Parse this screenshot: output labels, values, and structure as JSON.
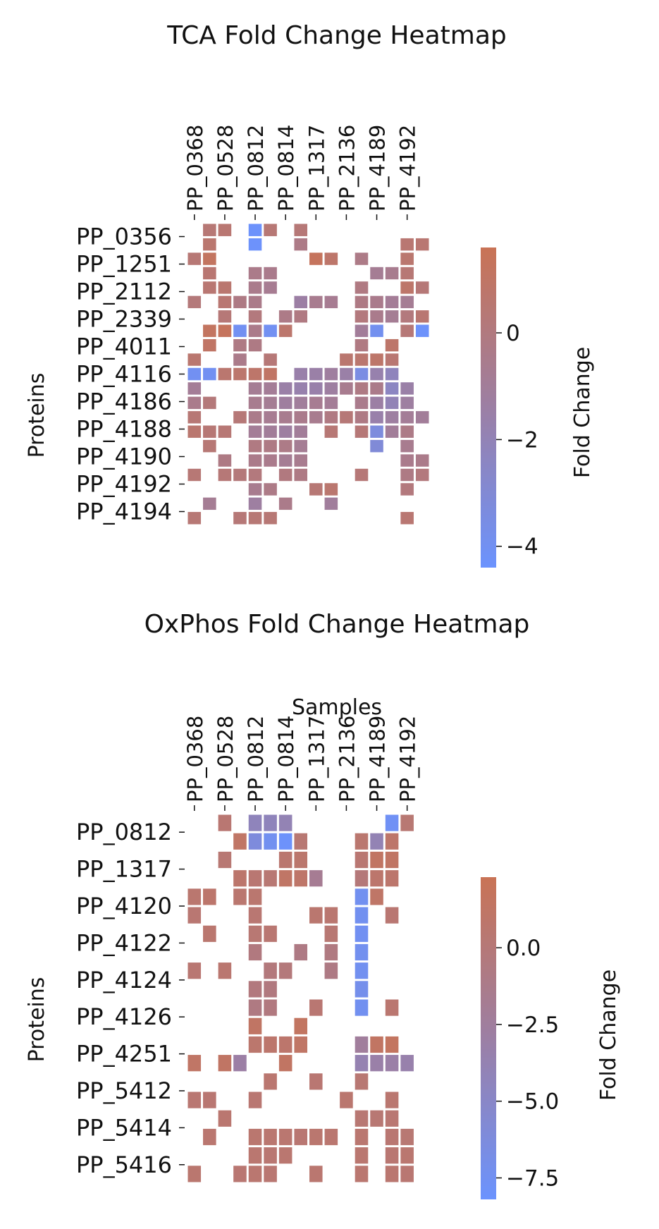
{
  "colors": {
    "low": "#6b93fe",
    "mid": "#9c7fa4",
    "high": "#c97355"
  },
  "chart_data": [
    {
      "type": "heatmap",
      "title": "TCA Fold Change Heatmap",
      "xlabel": "",
      "ylabel": "Proteins",
      "colorbar_label": "Fold Change",
      "colorbar_range": [
        -4.4,
        1.6
      ],
      "colorbar_ticks": [
        {
          "value": 0,
          "label": "0"
        },
        {
          "value": -2,
          "label": "−2"
        },
        {
          "value": -4,
          "label": "−4"
        }
      ],
      "x_tick_labels": [
        "PP_0368",
        "PP_0528",
        "PP_0812",
        "PP_0814",
        "PP_1317",
        "PP_2136",
        "PP_4189",
        "PP_4192"
      ],
      "y_tick_labels": [
        "PP_0356",
        "PP_1251",
        "PP_2112",
        "PP_2339",
        "PP_4011",
        "PP_4116",
        "PP_4186",
        "PP_4188",
        "PP_4190",
        "PP_4192",
        "PP_4194"
      ],
      "rows": [
        [
          null,
          0.4,
          0.5,
          null,
          -4.3,
          0.4,
          null,
          0.3,
          null,
          null,
          null,
          null,
          null,
          null,
          null,
          null
        ],
        [
          null,
          0.6,
          null,
          null,
          -4.3,
          null,
          null,
          -0.3,
          null,
          null,
          null,
          null,
          null,
          null,
          0.5,
          0.5
        ],
        [
          0.4,
          1.2,
          null,
          null,
          null,
          null,
          null,
          null,
          1.3,
          0.8,
          null,
          -0.3,
          null,
          null,
          0.6,
          null
        ],
        [
          null,
          0.5,
          null,
          null,
          -0.4,
          -0.5,
          null,
          null,
          null,
          null,
          null,
          null,
          -0.8,
          -0.6,
          0.4,
          null
        ],
        [
          null,
          0.5,
          0.6,
          null,
          -0.5,
          -0.7,
          null,
          null,
          null,
          null,
          null,
          -0.1,
          null,
          null,
          0.8,
          0.3
        ],
        [
          0.2,
          null,
          0.5,
          -0.2,
          -0.4,
          null,
          null,
          -1.4,
          -0.6,
          -0.7,
          null,
          -0.2,
          -0.5,
          -0.9,
          -0.8,
          null
        ],
        [
          null,
          null,
          0.3,
          null,
          0.1,
          null,
          -0.3,
          -0.1,
          null,
          null,
          null,
          0.1,
          -0.5,
          -0.8,
          0.1,
          0.5
        ],
        [
          null,
          1.2,
          1.3,
          -4.0,
          -0.4,
          -4.0,
          0.7,
          null,
          null,
          null,
          null,
          -1.0,
          -3.9,
          null,
          0.3,
          -4.3
        ],
        [
          null,
          1.0,
          null,
          -0.2,
          -0.2,
          null,
          null,
          null,
          null,
          null,
          null,
          -0.1,
          null,
          0.8,
          null,
          null
        ],
        [
          0.6,
          null,
          null,
          -0.4,
          null,
          0.3,
          null,
          null,
          null,
          null,
          0.6,
          0.6,
          0.8,
          0.5,
          null,
          null
        ],
        [
          -4.0,
          -4.0,
          0.6,
          0.7,
          0.8,
          1.0,
          null,
          -1.6,
          -1.5,
          -1.2,
          -1.5,
          -3.5,
          -1.7,
          -2.2,
          null,
          null
        ],
        [
          -0.9,
          null,
          null,
          null,
          -0.8,
          -0.9,
          -1.5,
          -1.7,
          -1.6,
          -1.3,
          -0.6,
          -0.2,
          -0.4,
          -2.4,
          -1.5,
          null
        ],
        [
          -0.5,
          0.2,
          null,
          null,
          -0.6,
          -0.8,
          -1.2,
          -1.1,
          -0.7,
          -0.9,
          null,
          -0.5,
          -1.4,
          -2.0,
          -1.3,
          null
        ],
        [
          0.4,
          null,
          null,
          0.3,
          -0.4,
          -0.7,
          -0.6,
          -0.5,
          -0.6,
          -0.1,
          0.3,
          -0.2,
          -1.6,
          -1.3,
          -0.9,
          -1.0
        ],
        [
          0.6,
          0.4,
          0.4,
          null,
          -0.9,
          -1.0,
          -1.3,
          -1.0,
          null,
          0.4,
          null,
          0.3,
          -3.3,
          -1.0,
          -0.3,
          null
        ],
        [
          null,
          0.4,
          null,
          null,
          -0.1,
          -0.2,
          -0.3,
          -0.8,
          null,
          null,
          null,
          null,
          -3.1,
          null,
          -0.6,
          null
        ],
        [
          null,
          null,
          -0.2,
          null,
          -0.4,
          -0.5,
          -0.8,
          -0.6,
          null,
          null,
          null,
          null,
          null,
          null,
          -0.5,
          -0.4
        ],
        [
          0.4,
          null,
          0.3,
          0.2,
          0.1,
          null,
          0.0,
          -0.2,
          null,
          null,
          null,
          0.3,
          null,
          null,
          -0.2,
          0.1
        ],
        [
          null,
          null,
          null,
          null,
          -0.6,
          -0.3,
          null,
          null,
          0.4,
          0.6,
          null,
          null,
          null,
          null,
          0.1,
          null
        ],
        [
          null,
          -0.8,
          null,
          null,
          -1.3,
          null,
          -0.4,
          null,
          null,
          -1.1,
          null,
          null,
          null,
          null,
          null,
          null
        ],
        [
          0.4,
          null,
          null,
          0.3,
          0.4,
          0.4,
          null,
          null,
          null,
          null,
          null,
          null,
          null,
          null,
          0.5,
          null
        ]
      ]
    },
    {
      "type": "heatmap",
      "title": "OxPhos Fold Change Heatmap",
      "xlabel": "Samples",
      "ylabel": "Proteins",
      "colorbar_label": "Fold Change",
      "colorbar_range": [
        -8.2,
        2.3
      ],
      "colorbar_ticks": [
        {
          "value": 0,
          "label": "0.0"
        },
        {
          "value": -2.5,
          "label": "−2.5"
        },
        {
          "value": -5,
          "label": "−5.0"
        },
        {
          "value": -7.5,
          "label": "−7.5"
        }
      ],
      "x_tick_labels": [
        "PP_0368",
        "PP_0528",
        "PP_0812",
        "PP_0814",
        "PP_1317",
        "PP_2136",
        "PP_4189",
        "PP_4192"
      ],
      "y_tick_labels": [
        "PP_0812",
        "PP_1317",
        "PP_4120",
        "PP_4122",
        "PP_4124",
        "PP_4126",
        "PP_4251",
        "PP_5412",
        "PP_5414",
        "PP_5416"
      ],
      "rows": [
        [
          null,
          null,
          0.4,
          null,
          -4.3,
          -4.3,
          -3.9,
          null,
          null,
          null,
          null,
          null,
          null,
          -7.7,
          0.3,
          null
        ],
        [
          null,
          null,
          null,
          1.2,
          -6.2,
          -7.4,
          -8.0,
          0.3,
          null,
          null,
          null,
          0.6,
          -3.9,
          0.9,
          null,
          null
        ],
        [
          null,
          null,
          0.3,
          null,
          null,
          null,
          0.6,
          0.7,
          null,
          null,
          null,
          0.4,
          1.4,
          1.3,
          null,
          null
        ],
        [
          null,
          null,
          null,
          0.8,
          0.4,
          0.3,
          1.2,
          1.0,
          -1.8,
          null,
          null,
          -0.1,
          0.8,
          0.8,
          null,
          null
        ],
        [
          0.6,
          0.8,
          null,
          0.6,
          0.6,
          null,
          null,
          null,
          null,
          null,
          null,
          -7.4,
          1.1,
          null,
          null,
          null
        ],
        [
          0.4,
          null,
          null,
          null,
          0.4,
          null,
          null,
          null,
          0.6,
          0.5,
          null,
          -7.4,
          null,
          0.4,
          null,
          null
        ],
        [
          null,
          0.6,
          null,
          null,
          0.3,
          0.4,
          null,
          null,
          null,
          0.3,
          null,
          -7.5,
          null,
          null,
          null,
          null
        ],
        [
          null,
          null,
          null,
          null,
          -0.5,
          null,
          null,
          -0.8,
          null,
          -0.6,
          null,
          -7.3,
          null,
          null,
          null,
          null
        ],
        [
          0.4,
          null,
          0.5,
          null,
          null,
          -0.3,
          -0.2,
          null,
          null,
          -0.8,
          null,
          -7.4,
          null,
          null,
          null,
          null
        ],
        [
          null,
          null,
          null,
          null,
          -0.4,
          -0.5,
          null,
          null,
          null,
          null,
          null,
          -7.1,
          null,
          null,
          null,
          null
        ],
        [
          null,
          null,
          null,
          null,
          -0.7,
          -0.5,
          null,
          null,
          0.4,
          null,
          null,
          -7.4,
          null,
          0.5,
          null,
          null
        ],
        [
          null,
          null,
          null,
          null,
          1.3,
          null,
          null,
          1.5,
          null,
          null,
          null,
          null,
          null,
          null,
          null,
          null
        ],
        [
          null,
          null,
          null,
          null,
          0.7,
          0.8,
          0.8,
          1.2,
          null,
          null,
          null,
          -2.4,
          1.4,
          1.6,
          null,
          null
        ],
        [
          1.2,
          null,
          1.3,
          -3.0,
          null,
          null,
          1.4,
          null,
          null,
          null,
          null,
          -3.7,
          -3.2,
          -3.1,
          -3.4,
          null
        ],
        [
          null,
          null,
          null,
          null,
          null,
          0.5,
          null,
          null,
          0.4,
          null,
          null,
          0.3,
          null,
          null,
          null,
          null
        ],
        [
          0.4,
          0.4,
          null,
          null,
          0.4,
          null,
          null,
          null,
          null,
          null,
          0.6,
          null,
          null,
          0.5,
          null,
          null
        ],
        [
          null,
          null,
          0.5,
          null,
          null,
          null,
          null,
          null,
          null,
          null,
          null,
          0.3,
          0.3,
          0.4,
          null,
          null
        ],
        [
          null,
          0.5,
          null,
          null,
          0.6,
          0.5,
          0.5,
          0.4,
          0.6,
          0.5,
          null,
          0.5,
          null,
          0.4,
          0.3,
          null
        ],
        [
          null,
          null,
          null,
          null,
          0.5,
          0.4,
          0.5,
          null,
          null,
          null,
          null,
          0.5,
          null,
          0.4,
          0.5,
          null
        ],
        [
          0.6,
          null,
          null,
          0.4,
          0.5,
          0.4,
          null,
          null,
          0.5,
          null,
          null,
          0.5,
          null,
          0.5,
          0.4,
          null
        ]
      ]
    }
  ]
}
